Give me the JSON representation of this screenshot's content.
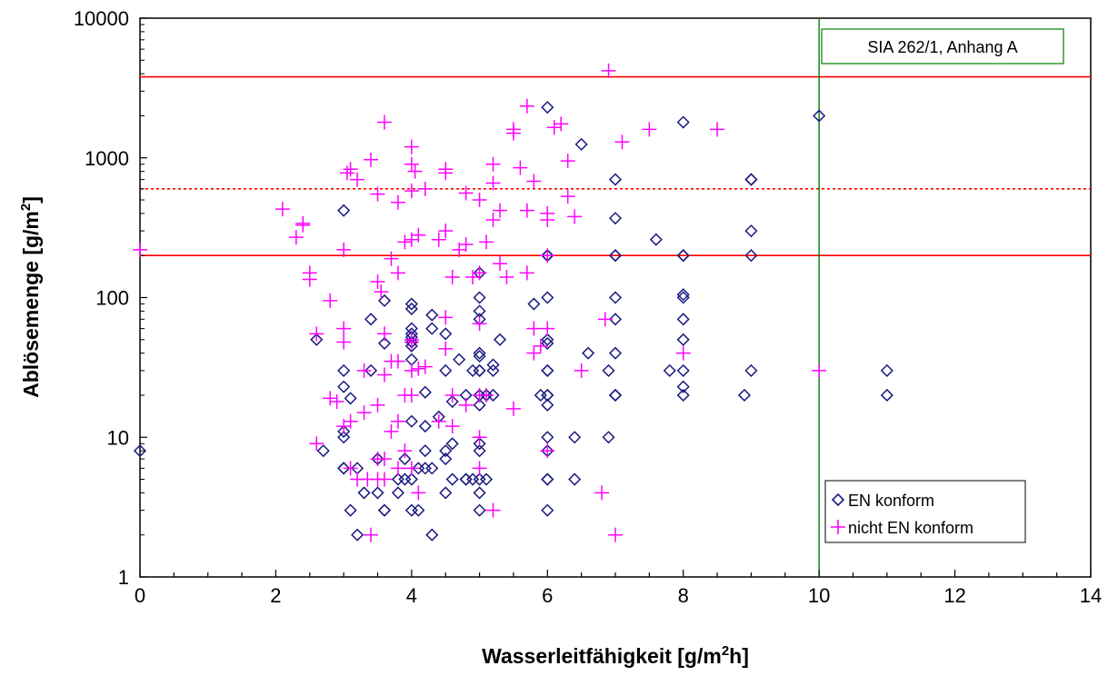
{
  "chart_data": {
    "type": "scatter",
    "title": "",
    "xlabel": {
      "main": "Wasserleitfähigkeit [g/m",
      "sup": "2",
      "tail": "h]"
    },
    "ylabel": {
      "main": "Ablösemenge [g/m",
      "sup": "2",
      "tail": "]"
    },
    "xlim": [
      0,
      14
    ],
    "ylim": [
      1,
      10000
    ],
    "yscale": "log",
    "x_ticks": [
      "0",
      "2",
      "4",
      "6",
      "8",
      "10",
      "12",
      "14"
    ],
    "y_ticks": [
      "1",
      "10",
      "100",
      "1000",
      "10000"
    ],
    "grid": false,
    "legend_position": "bottom-right",
    "colors": {
      "en_konform": "#1a1a80",
      "nicht_en_konform": "#ff00ff",
      "limit_lines": "#ff0000",
      "vertical_limit": "#008000"
    },
    "reference_lines": {
      "horizontal_solid": [
        3800,
        200
      ],
      "horizontal_dotted": [
        600
      ],
      "vertical": [
        10
      ]
    },
    "annotation": "SIA 262/1, Anhang A",
    "series": [
      {
        "name": "EN konform",
        "marker": "diamond",
        "points": [
          [
            0,
            8
          ],
          [
            2.6,
            50
          ],
          [
            2.7,
            8
          ],
          [
            3,
            420
          ],
          [
            3,
            30
          ],
          [
            3,
            23
          ],
          [
            3,
            11
          ],
          [
            3,
            10
          ],
          [
            3,
            6
          ],
          [
            3,
            6
          ],
          [
            3.1,
            19
          ],
          [
            3.1,
            3
          ],
          [
            3.2,
            6
          ],
          [
            3.2,
            2
          ],
          [
            3.3,
            4
          ],
          [
            3.4,
            70
          ],
          [
            3.4,
            30
          ],
          [
            3.5,
            7
          ],
          [
            3.5,
            4
          ],
          [
            3.6,
            95
          ],
          [
            3.6,
            47
          ],
          [
            3.6,
            3
          ],
          [
            3.6,
            3
          ],
          [
            3.8,
            5
          ],
          [
            3.8,
            4
          ],
          [
            3.9,
            7
          ],
          [
            3.9,
            5
          ],
          [
            4,
            90
          ],
          [
            4,
            83
          ],
          [
            4,
            60
          ],
          [
            4,
            55
          ],
          [
            4,
            52
          ],
          [
            4,
            48
          ],
          [
            4,
            45
          ],
          [
            4,
            36
          ],
          [
            4,
            13
          ],
          [
            4,
            5
          ],
          [
            4,
            3
          ],
          [
            4.1,
            6
          ],
          [
            4.1,
            3
          ],
          [
            4.2,
            21
          ],
          [
            4.2,
            12
          ],
          [
            4.2,
            8
          ],
          [
            4.2,
            6
          ],
          [
            4.3,
            75
          ],
          [
            4.3,
            60
          ],
          [
            4.3,
            6
          ],
          [
            4.3,
            2
          ],
          [
            4.4,
            14
          ],
          [
            4.5,
            55
          ],
          [
            4.5,
            30
          ],
          [
            4.5,
            8
          ],
          [
            4.5,
            7
          ],
          [
            4.5,
            4
          ],
          [
            4.6,
            18
          ],
          [
            4.6,
            5
          ],
          [
            4.6,
            9
          ],
          [
            4.7,
            36
          ],
          [
            4.8,
            20
          ],
          [
            4.8,
            5
          ],
          [
            4.8,
            5
          ],
          [
            4.9,
            30
          ],
          [
            4.9,
            5
          ],
          [
            5,
            150
          ],
          [
            5,
            100
          ],
          [
            5,
            80
          ],
          [
            5,
            70
          ],
          [
            5,
            40
          ],
          [
            5,
            38
          ],
          [
            5,
            30
          ],
          [
            5,
            30
          ],
          [
            5,
            20
          ],
          [
            5,
            17
          ],
          [
            5,
            9
          ],
          [
            5,
            8
          ],
          [
            5,
            5
          ],
          [
            5,
            4
          ],
          [
            5,
            3
          ],
          [
            5.1,
            20
          ],
          [
            5.1,
            5
          ],
          [
            5.2,
            33
          ],
          [
            5.2,
            30
          ],
          [
            5.2,
            20
          ],
          [
            5.3,
            50
          ],
          [
            5.8,
            90
          ],
          [
            5.9,
            20
          ],
          [
            6,
            2300
          ],
          [
            6,
            200
          ],
          [
            6,
            200
          ],
          [
            6,
            100
          ],
          [
            6,
            50
          ],
          [
            6,
            47
          ],
          [
            6,
            30
          ],
          [
            6,
            30
          ],
          [
            6,
            20
          ],
          [
            6,
            20
          ],
          [
            6,
            17
          ],
          [
            6,
            10
          ],
          [
            6,
            8
          ],
          [
            6,
            5
          ],
          [
            6,
            5
          ],
          [
            6,
            3
          ],
          [
            6.4,
            10
          ],
          [
            6.4,
            5
          ],
          [
            6.5,
            1250
          ],
          [
            6.6,
            40
          ],
          [
            6.9,
            30
          ],
          [
            6.9,
            10
          ],
          [
            7,
            700
          ],
          [
            7,
            370
          ],
          [
            7,
            200
          ],
          [
            7,
            200
          ],
          [
            7,
            100
          ],
          [
            7,
            70
          ],
          [
            7,
            40
          ],
          [
            7,
            20
          ],
          [
            7,
            20
          ],
          [
            7.6,
            260
          ],
          [
            7.8,
            30
          ],
          [
            8,
            1800
          ],
          [
            8,
            200
          ],
          [
            8,
            200
          ],
          [
            8,
            105
          ],
          [
            8,
            100
          ],
          [
            8,
            70
          ],
          [
            8,
            50
          ],
          [
            8,
            30
          ],
          [
            8,
            23
          ],
          [
            8,
            20
          ],
          [
            8.9,
            20
          ],
          [
            9,
            700
          ],
          [
            9,
            700
          ],
          [
            9,
            300
          ],
          [
            9,
            200
          ],
          [
            9,
            30
          ],
          [
            10,
            2000
          ],
          [
            11,
            30
          ],
          [
            11,
            20
          ]
        ]
      },
      {
        "name": "nicht EN konform",
        "marker": "plus",
        "points": [
          [
            0,
            220
          ],
          [
            2.1,
            430
          ],
          [
            2.3,
            270
          ],
          [
            2.4,
            330
          ],
          [
            2.4,
            340
          ],
          [
            2.5,
            150
          ],
          [
            2.5,
            135
          ],
          [
            2.6,
            55
          ],
          [
            2.6,
            9
          ],
          [
            2.8,
            95
          ],
          [
            2.8,
            19
          ],
          [
            2.9,
            18
          ],
          [
            3,
            220
          ],
          [
            3,
            60
          ],
          [
            3,
            48
          ],
          [
            3,
            12
          ],
          [
            3.05,
            780
          ],
          [
            3.1,
            830
          ],
          [
            3.1,
            13
          ],
          [
            3.1,
            6
          ],
          [
            3.2,
            700
          ],
          [
            3.2,
            5
          ],
          [
            3.3,
            30
          ],
          [
            3.3,
            15
          ],
          [
            3.35,
            5
          ],
          [
            3.4,
            970
          ],
          [
            3.4,
            2
          ],
          [
            3.5,
            550
          ],
          [
            3.5,
            130
          ],
          [
            3.5,
            17
          ],
          [
            3.5,
            7
          ],
          [
            3.5,
            5
          ],
          [
            3.55,
            110
          ],
          [
            3.6,
            1800
          ],
          [
            3.6,
            55
          ],
          [
            3.6,
            28
          ],
          [
            3.6,
            7
          ],
          [
            3.6,
            5
          ],
          [
            3.7,
            190
          ],
          [
            3.7,
            35
          ],
          [
            3.7,
            11
          ],
          [
            3.8,
            480
          ],
          [
            3.8,
            150
          ],
          [
            3.8,
            35
          ],
          [
            3.8,
            13
          ],
          [
            3.8,
            6
          ],
          [
            3.9,
            250
          ],
          [
            3.9,
            20
          ],
          [
            3.9,
            8
          ],
          [
            4,
            1200
          ],
          [
            4,
            900
          ],
          [
            4,
            580
          ],
          [
            4,
            260
          ],
          [
            4,
            50
          ],
          [
            4,
            48
          ],
          [
            4,
            30
          ],
          [
            4,
            20
          ],
          [
            4,
            6
          ],
          [
            4.05,
            800
          ],
          [
            4.1,
            280
          ],
          [
            4.1,
            31
          ],
          [
            4.1,
            4
          ],
          [
            4.2,
            600
          ],
          [
            4.2,
            32
          ],
          [
            4.4,
            260
          ],
          [
            4.4,
            13
          ],
          [
            4.5,
            830
          ],
          [
            4.5,
            780
          ],
          [
            4.5,
            300
          ],
          [
            4.5,
            72
          ],
          [
            4.5,
            43
          ],
          [
            4.6,
            140
          ],
          [
            4.6,
            20
          ],
          [
            4.6,
            12
          ],
          [
            4.7,
            220
          ],
          [
            4.8,
            560
          ],
          [
            4.8,
            240
          ],
          [
            4.8,
            17
          ],
          [
            4.9,
            140
          ],
          [
            5,
            500
          ],
          [
            5,
            150
          ],
          [
            5,
            65
          ],
          [
            5,
            20
          ],
          [
            5,
            10
          ],
          [
            5,
            6
          ],
          [
            5.1,
            250
          ],
          [
            5.1,
            20
          ],
          [
            5.2,
            900
          ],
          [
            5.2,
            660
          ],
          [
            5.2,
            360
          ],
          [
            5.2,
            3
          ],
          [
            5.3,
            420
          ],
          [
            5.3,
            175
          ],
          [
            5.4,
            140
          ],
          [
            5.5,
            1600
          ],
          [
            5.5,
            1500
          ],
          [
            5.5,
            16
          ],
          [
            5.6,
            850
          ],
          [
            5.7,
            2350
          ],
          [
            5.7,
            420
          ],
          [
            5.7,
            150
          ],
          [
            5.8,
            680
          ],
          [
            5.8,
            60
          ],
          [
            5.8,
            40
          ],
          [
            5.9,
            45
          ],
          [
            6,
            400
          ],
          [
            6,
            360
          ],
          [
            6,
            200
          ],
          [
            6,
            60
          ],
          [
            6,
            8
          ],
          [
            6.1,
            1650
          ],
          [
            6.2,
            1750
          ],
          [
            6.3,
            950
          ],
          [
            6.3,
            530
          ],
          [
            6.4,
            380
          ],
          [
            6.5,
            30
          ],
          [
            6.8,
            4
          ],
          [
            6.85,
            70
          ],
          [
            6.9,
            4200
          ],
          [
            7,
            2
          ],
          [
            7.1,
            1300
          ],
          [
            7.5,
            1600
          ],
          [
            8,
            40
          ],
          [
            8.5,
            1600
          ],
          [
            10,
            30
          ]
        ]
      }
    ]
  }
}
